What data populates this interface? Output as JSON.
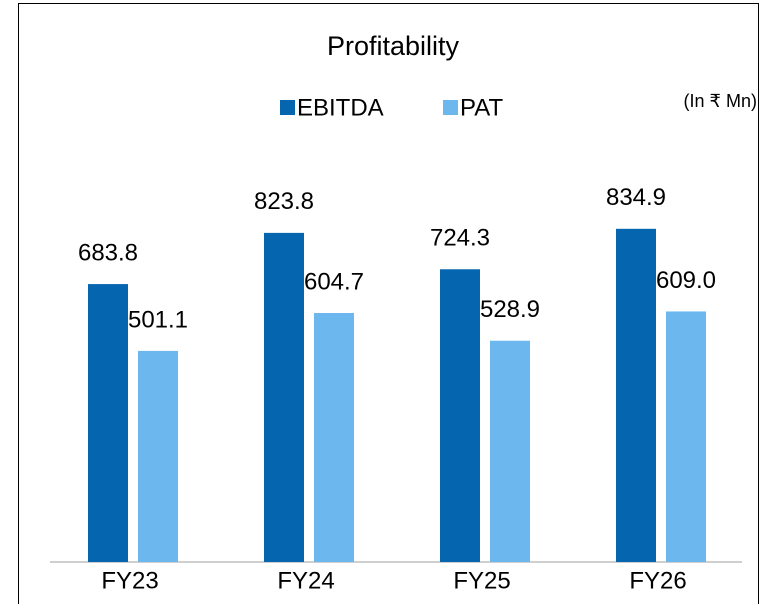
{
  "chart_data": {
    "type": "bar",
    "title": "Profitability",
    "subtitle": "(In ₹ Mn)",
    "categories": [
      "FY23",
      "FY24",
      "FY25",
      "FY26"
    ],
    "series": [
      {
        "name": "EBITDA",
        "color": "#0565ae",
        "values": [
          683.8,
          823.8,
          724.3,
          834.9
        ],
        "value_labels": [
          "683.8",
          "823.8",
          "724.3",
          "834.9"
        ]
      },
      {
        "name": "PAT",
        "color": "#6cb8ee",
        "values": [
          501.1,
          604.7,
          528.9,
          609.0
        ],
        "value_labels": [
          "501.1",
          "604.7",
          "528.9",
          "609.0"
        ]
      }
    ],
    "ylim": [
      -76,
      900
    ],
    "legend": "top"
  }
}
